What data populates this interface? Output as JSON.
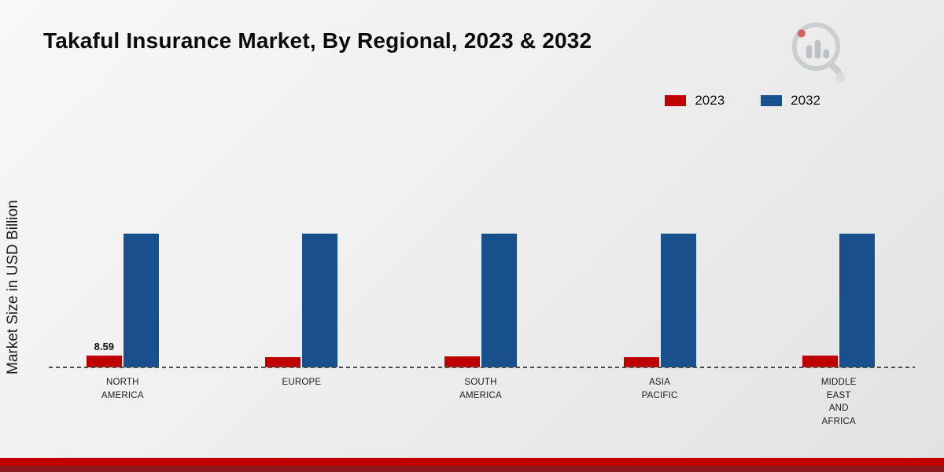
{
  "title": "Takaful Insurance Market, By Regional, 2023 & 2032",
  "y_axis_label": "Market Size in USD Billion",
  "legend": [
    {
      "label": "2023",
      "color": "#c00000"
    },
    {
      "label": "2032",
      "color": "#17508d"
    }
  ],
  "chart_data": {
    "type": "bar",
    "title": "Takaful Insurance Market, By Regional, 2023 & 2032",
    "xlabel": "",
    "ylabel": "Market Size in USD Billion",
    "categories": [
      "NORTH\nAMERICA",
      "EUROPE",
      "SOUTH\nAMERICA",
      "ASIA\nPACIFIC",
      "MIDDLE\nEAST\nAND\nAFRICA"
    ],
    "series": [
      {
        "name": "2023",
        "color": "#c00000",
        "values": [
          8.59,
          7.4,
          8.1,
          7.7,
          8.4
        ],
        "labels": [
          "8.59",
          "",
          "",
          "",
          ""
        ]
      },
      {
        "name": "2032",
        "color": "#17508d",
        "values": [
          97,
          97,
          97,
          97,
          97
        ],
        "labels": [
          "",
          "",
          "",
          "",
          ""
        ]
      }
    ],
    "ylim": [
      0,
      200
    ],
    "grid": false,
    "legend_position": "top-right",
    "baseline_style": "dashed"
  },
  "footer": {
    "red_bar_color": "#c00000",
    "maroon_bar_color": "#8a191c"
  },
  "logo": {
    "name": "market-research-logo"
  }
}
